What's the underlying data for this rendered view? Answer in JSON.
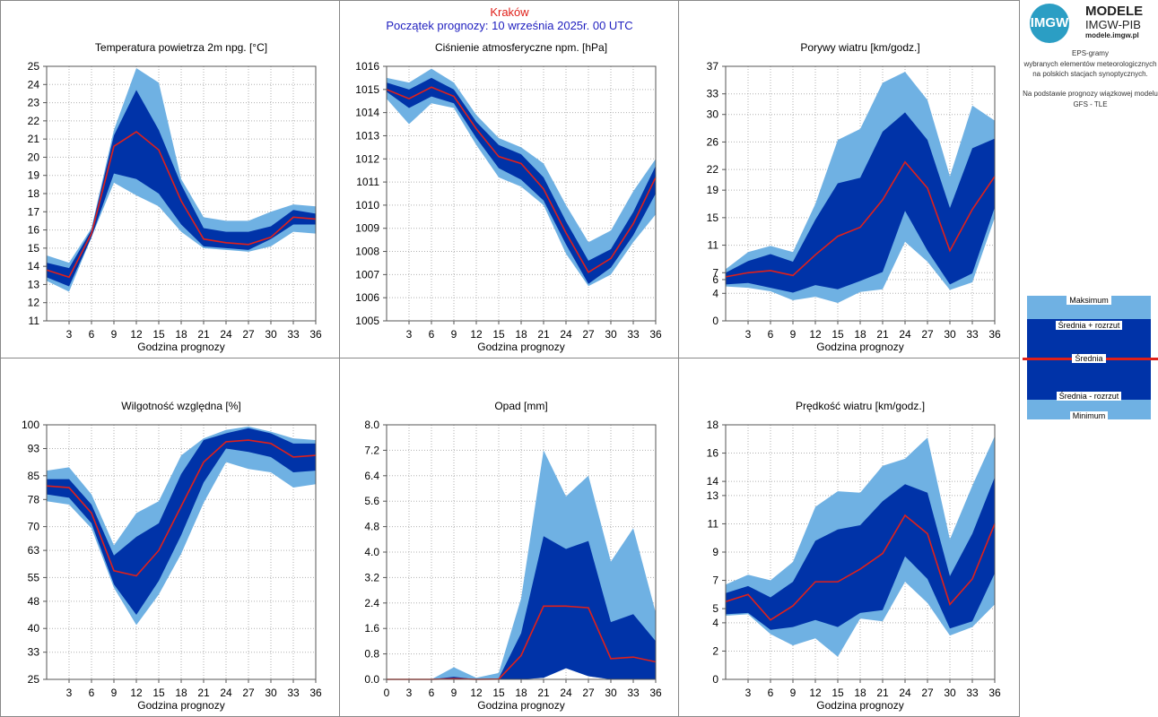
{
  "header": {
    "city": "Kraków",
    "forecast_start": "Początek prognozy: 10 września 2025r. 00 UTC"
  },
  "logo": {
    "badge": "IMGW",
    "title": "MODELE",
    "subtitle": "IMGW-PIB",
    "url": "modele.imgw.pl"
  },
  "description": {
    "line1": "EPS-gramy",
    "line2": "wybranych elementów meteorologicznych",
    "line3": "na polskich stacjach  synoptycznych.",
    "line4": "Na podstawie prognozy wiązkowej modelu",
    "line5": "GFS - TLE"
  },
  "legend": {
    "max": "Maksimum",
    "mean_plus": "Średnia + rozrzut",
    "mean": "Średnia",
    "mean_minus": "Średnia - rozrzut",
    "min": "Minimum"
  },
  "colors": {
    "minmax": "#6fb1e3",
    "spread": "#0033a8",
    "mean": "#e0201a",
    "grid": "#b0b0b0",
    "city": "#e0201a",
    "start": "#1f1fbf"
  },
  "chart_data": [
    {
      "id": "temperature",
      "type": "area",
      "title": "Temperatura powietrza 2m npg. [°C]",
      "xlabel": "Godzina prognozy",
      "x": [
        0,
        3,
        6,
        9,
        12,
        15,
        18,
        21,
        24,
        27,
        30,
        33,
        36
      ],
      "x_ticks": [
        "3",
        "6",
        "9",
        "12",
        "15",
        "18",
        "21",
        "24",
        "27",
        "30",
        "33",
        "36"
      ],
      "ylim": [
        11,
        25
      ],
      "y_ticks": [
        "11",
        "12",
        "13",
        "14",
        "15",
        "16",
        "17",
        "18",
        "19",
        "20",
        "21",
        "22",
        "23",
        "24",
        "25"
      ],
      "min": [
        13.2,
        12.6,
        15.6,
        18.6,
        17.9,
        17.3,
        15.9,
        15.0,
        14.9,
        14.8,
        15.1,
        15.9,
        15.8
      ],
      "mean_minus": [
        13.4,
        12.9,
        15.6,
        19.1,
        18.8,
        18.0,
        16.3,
        15.1,
        15.0,
        14.9,
        15.5,
        16.3,
        16.3
      ],
      "mean": [
        13.8,
        13.4,
        15.8,
        20.6,
        21.4,
        20.4,
        17.6,
        15.5,
        15.3,
        15.2,
        15.6,
        16.7,
        16.6
      ],
      "mean_plus": [
        14.2,
        13.9,
        16.0,
        21.2,
        23.7,
        21.5,
        18.5,
        16.1,
        15.9,
        15.9,
        16.2,
        17.1,
        16.9
      ],
      "max": [
        14.6,
        14.2,
        16.1,
        21.5,
        24.9,
        24.1,
        18.8,
        16.7,
        16.5,
        16.5,
        17.0,
        17.4,
        17.3
      ]
    },
    {
      "id": "pressure",
      "type": "area",
      "title": "Ciśnienie atmosferyczne npm. [hPa]",
      "xlabel": "Godzina prognozy",
      "x": [
        0,
        3,
        6,
        9,
        12,
        15,
        18,
        21,
        24,
        27,
        30,
        33,
        36
      ],
      "x_ticks": [
        "3",
        "6",
        "9",
        "12",
        "15",
        "18",
        "21",
        "24",
        "27",
        "30",
        "33",
        "36"
      ],
      "ylim": [
        1005,
        1016
      ],
      "y_ticks": [
        "1005",
        "1006",
        "1007",
        "1008",
        "1009",
        "1010",
        "1011",
        "1012",
        "1013",
        "1014",
        "1015",
        "1016"
      ],
      "min": [
        1014.6,
        1013.5,
        1014.4,
        1014.2,
        1012.6,
        1011.2,
        1010.8,
        1010.0,
        1007.9,
        1006.5,
        1007.0,
        1008.4,
        1009.6
      ],
      "mean_minus": [
        1014.9,
        1014.2,
        1014.7,
        1014.4,
        1012.9,
        1011.6,
        1011.1,
        1010.2,
        1008.3,
        1006.6,
        1007.3,
        1008.7,
        1010.5
      ],
      "mean": [
        1015.0,
        1014.6,
        1015.1,
        1014.7,
        1013.3,
        1012.1,
        1011.8,
        1010.7,
        1008.8,
        1007.1,
        1007.7,
        1009.2,
        1011.2
      ],
      "mean_plus": [
        1015.3,
        1015.0,
        1015.5,
        1015.0,
        1013.6,
        1012.6,
        1012.2,
        1011.2,
        1009.3,
        1007.6,
        1008.1,
        1009.7,
        1011.7
      ],
      "max": [
        1015.5,
        1015.3,
        1015.9,
        1015.3,
        1013.9,
        1012.9,
        1012.5,
        1011.8,
        1010.0,
        1008.4,
        1008.9,
        1010.6,
        1012.0
      ]
    },
    {
      "id": "gusts",
      "type": "area",
      "title": "Porywy wiatru [km/godz.]",
      "xlabel": "Godzina prognozy",
      "x": [
        0,
        3,
        6,
        9,
        12,
        15,
        18,
        21,
        24,
        27,
        30,
        33,
        36
      ],
      "x_ticks": [
        "3",
        "6",
        "9",
        "12",
        "15",
        "18",
        "21",
        "24",
        "27",
        "30",
        "33",
        "36"
      ],
      "ylim": [
        0,
        37
      ],
      "y_ticks": [
        "0",
        "4",
        "6",
        "7",
        "11",
        "15",
        "19",
        "22",
        "26",
        "30",
        "33",
        "37"
      ],
      "min": [
        5.0,
        4.8,
        4.3,
        3.0,
        3.5,
        2.6,
        4.2,
        4.6,
        11.5,
        8.6,
        4.5,
        5.6,
        15.0
      ],
      "mean_minus": [
        5.3,
        5.5,
        4.8,
        4.1,
        5.2,
        4.6,
        5.8,
        7.1,
        16.0,
        10.2,
        5.3,
        6.9,
        16.5
      ],
      "mean": [
        6.4,
        7.0,
        7.3,
        6.6,
        9.6,
        12.3,
        13.6,
        17.6,
        23.1,
        19.3,
        10.2,
        16.2,
        21.0
      ],
      "mean_plus": [
        7.0,
        8.7,
        9.7,
        8.6,
        14.7,
        20.0,
        20.8,
        27.5,
        30.3,
        26.3,
        16.4,
        25.1,
        26.5
      ],
      "max": [
        7.5,
        10.0,
        10.9,
        10.0,
        17.0,
        26.3,
        27.9,
        34.6,
        36.2,
        32.1,
        21.0,
        31.3,
        29.1
      ]
    },
    {
      "id": "humidity",
      "type": "area",
      "title": "Wilgotność względna [%]",
      "xlabel": "Godzina prognozy",
      "x": [
        0,
        3,
        6,
        9,
        12,
        15,
        18,
        21,
        24,
        27,
        30,
        33,
        36
      ],
      "x_ticks": [
        "3",
        "6",
        "9",
        "12",
        "15",
        "18",
        "21",
        "24",
        "27",
        "30",
        "33",
        "36"
      ],
      "ylim": [
        25,
        100
      ],
      "y_ticks": [
        "25",
        "33",
        "40",
        "48",
        "55",
        "63",
        "70",
        "78",
        "85",
        "93",
        "100"
      ],
      "min": [
        77.5,
        76.5,
        69.5,
        52.0,
        41.0,
        50.0,
        62.0,
        77.0,
        89.0,
        87.0,
        86.0,
        81.5,
        82.5
      ],
      "mean_minus": [
        79.5,
        78.5,
        71.0,
        53.0,
        44.0,
        54.0,
        67.5,
        83.0,
        93.0,
        92.0,
        90.5,
        86.0,
        86.5
      ],
      "mean": [
        82.0,
        81.5,
        74.0,
        57.0,
        55.5,
        63.0,
        76.0,
        89.0,
        95.0,
        95.5,
        94.5,
        90.5,
        91.0
      ],
      "mean_plus": [
        84.0,
        84.0,
        76.5,
        61.5,
        67.0,
        71.0,
        85.5,
        95.5,
        97.5,
        99.0,
        97.5,
        94.5,
        94.5
      ],
      "max": [
        86.5,
        87.5,
        79.5,
        64.5,
        74.0,
        77.5,
        91.0,
        96.0,
        98.5,
        99.5,
        98.0,
        96.0,
        95.5
      ]
    },
    {
      "id": "precipitation",
      "type": "area",
      "title": "Opad [mm]",
      "xlabel": "Godzina prognozy",
      "x": [
        0,
        3,
        6,
        9,
        12,
        15,
        18,
        21,
        24,
        27,
        30,
        33,
        36
      ],
      "x_ticks": [
        "0",
        "3",
        "6",
        "9",
        "12",
        "15",
        "18",
        "21",
        "24",
        "27",
        "30",
        "33",
        "36"
      ],
      "ylim": [
        0,
        8
      ],
      "y_ticks": [
        "0.0",
        "0.8",
        "1.6",
        "2.4",
        "3.2",
        "4.0",
        "4.8",
        "5.6",
        "6.4",
        "7.2",
        "8.0"
      ],
      "min": [
        0,
        0,
        0,
        0,
        0,
        0,
        0,
        0.05,
        0.35,
        0.1,
        0,
        0,
        0
      ],
      "mean_minus": [
        0,
        0,
        0,
        0,
        0,
        0,
        0,
        0.05,
        0.35,
        0.1,
        0,
        0,
        0
      ],
      "mean": [
        0,
        0,
        0,
        0.02,
        0,
        0.01,
        0.75,
        2.3,
        2.3,
        2.25,
        0.65,
        0.7,
        0.55
      ],
      "mean_plus": [
        0,
        0,
        0,
        0.08,
        0,
        0.03,
        1.45,
        4.5,
        4.1,
        4.35,
        1.8,
        2.05,
        1.2
      ],
      "max": [
        0,
        0,
        0,
        0.38,
        0.05,
        0.2,
        2.55,
        7.2,
        5.75,
        6.4,
        3.7,
        4.75,
        2.1
      ]
    },
    {
      "id": "wind",
      "type": "area",
      "title": "Prędkość wiatru [km/godz.]",
      "xlabel": "Godzina prognozy",
      "x": [
        0,
        3,
        6,
        9,
        12,
        15,
        18,
        21,
        24,
        27,
        30,
        33,
        36
      ],
      "x_ticks": [
        "3",
        "6",
        "9",
        "12",
        "15",
        "18",
        "21",
        "24",
        "27",
        "30",
        "33",
        "36"
      ],
      "ylim": [
        0,
        18
      ],
      "y_ticks": [
        "0",
        "2",
        "4",
        "5",
        "7",
        "9",
        "11",
        "13",
        "14",
        "16",
        "18"
      ],
      "min": [
        4.5,
        4.6,
        3.2,
        2.4,
        2.9,
        1.6,
        4.3,
        4.1,
        6.9,
        5.4,
        3.1,
        3.7,
        5.3
      ],
      "mean_minus": [
        4.6,
        4.7,
        3.5,
        3.7,
        4.2,
        3.7,
        4.7,
        4.9,
        8.7,
        7.1,
        3.6,
        4.1,
        7.5
      ],
      "mean": [
        5.5,
        6.0,
        4.2,
        5.2,
        6.9,
        6.9,
        7.8,
        8.9,
        11.6,
        10.3,
        5.3,
        7.1,
        11.0
      ],
      "mean_plus": [
        6.1,
        6.6,
        5.8,
        6.9,
        9.8,
        10.6,
        10.9,
        12.6,
        13.8,
        13.2,
        7.3,
        10.3,
        14.3
      ],
      "max": [
        6.7,
        7.4,
        7.0,
        8.3,
        12.2,
        13.3,
        13.2,
        15.1,
        15.6,
        17.1,
        9.9,
        13.7,
        17.2
      ]
    }
  ]
}
